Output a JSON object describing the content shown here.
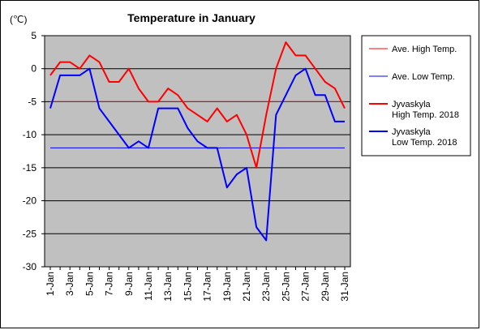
{
  "chart_data": {
    "type": "line",
    "title": "Temperature in January",
    "ylabel": "(℃)",
    "ylim": [
      -30,
      5
    ],
    "yticks": [
      5,
      0,
      -5,
      -10,
      -15,
      -20,
      -25,
      -30
    ],
    "x": [
      1,
      2,
      3,
      4,
      5,
      6,
      7,
      8,
      9,
      10,
      11,
      12,
      13,
      14,
      15,
      16,
      17,
      18,
      19,
      20,
      21,
      22,
      23,
      24,
      25,
      26,
      27,
      28,
      29,
      30,
      31
    ],
    "xtick_labels": [
      "1-Jan",
      "3-Jan",
      "5-Jan",
      "7-Jan",
      "9-Jan",
      "11-Jan",
      "13-Jan",
      "15-Jan",
      "17-Jan",
      "19-Jan",
      "21-Jan",
      "23-Jan",
      "25-Jan",
      "27-Jan",
      "29-Jan",
      "31-Jan"
    ],
    "grid": true,
    "legend_position": "right",
    "series": [
      {
        "name": "Ave. High Temp.",
        "color": "#ff0000",
        "width": 1,
        "values": [
          -5,
          -5,
          -5,
          -5,
          -5,
          -5,
          -5,
          -5,
          -5,
          -5,
          -5,
          -5,
          -5,
          -5,
          -5,
          -5,
          -5,
          -5,
          -5,
          -5,
          -5,
          -5,
          -5,
          -5,
          -5,
          -5,
          -5,
          -5,
          -5,
          -5,
          -5
        ]
      },
      {
        "name": "Ave. Low Temp.",
        "color": "#0000ff",
        "width": 1,
        "values": [
          -12,
          -12,
          -12,
          -12,
          -12,
          -12,
          -12,
          -12,
          -12,
          -12,
          -12,
          -12,
          -12,
          -12,
          -12,
          -12,
          -12,
          -12,
          -12,
          -12,
          -12,
          -12,
          -12,
          -12,
          -12,
          -12,
          -12,
          -12,
          -12,
          -12,
          -12
        ]
      },
      {
        "name": "Jyvaskyla High Temp. 2018",
        "legend_lines": [
          "Jyvaskyla",
          "High Temp. 2018"
        ],
        "color": "#ff0000",
        "width": 2,
        "values": [
          -1,
          1,
          1,
          0,
          2,
          1,
          -2,
          -2,
          0,
          -3,
          -5,
          -5,
          -3,
          -4,
          -6,
          -7,
          -8,
          -6,
          -8,
          -7,
          -10,
          -15,
          -7,
          0,
          4,
          2,
          2,
          0,
          -2,
          -3,
          -6
        ]
      },
      {
        "name": "Jyvaskyla Low Temp. 2018",
        "legend_lines": [
          "Jyvaskyla",
          "Low Temp. 2018"
        ],
        "color": "#0000ff",
        "width": 2,
        "values": [
          -6,
          -1,
          -1,
          -1,
          0,
          -6,
          -8,
          -10,
          -12,
          -11,
          -12,
          -6,
          -6,
          -6,
          -9,
          -11,
          -12,
          -12,
          -18,
          -16,
          -15,
          -24,
          -26,
          -7,
          -4,
          -1,
          0,
          -4,
          -4,
          -8,
          -8
        ]
      }
    ]
  }
}
